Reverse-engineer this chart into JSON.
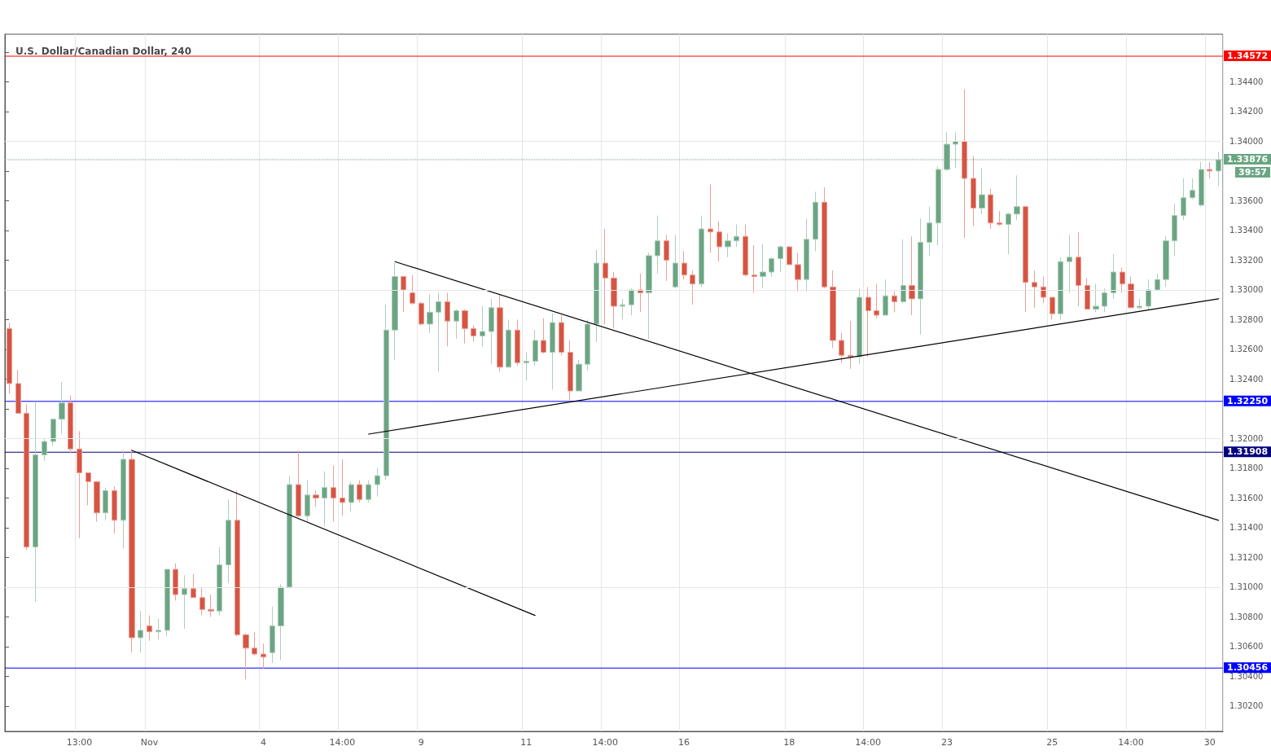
{
  "chart_data": {
    "type": "candlestick",
    "title": "U.S. Dollar/Canadian Dollar, 240",
    "categories": [
      null,
      null,
      null,
      null,
      null,
      null,
      null,
      null,
      "13:00",
      null,
      null,
      null,
      null,
      null,
      null,
      null,
      "Nov",
      null,
      null,
      null,
      null,
      null,
      null,
      null,
      null,
      null,
      null,
      null,
      null,
      "4",
      null,
      null,
      null,
      null,
      null,
      null,
      null,
      null,
      "14:00",
      null,
      null,
      null,
      null,
      null,
      null,
      null,
      null,
      "9",
      null,
      null,
      null,
      null,
      null,
      null,
      null,
      null,
      null,
      null,
      null,
      "11",
      null,
      null,
      null,
      null,
      null,
      null,
      null,
      null,
      "14:00",
      null,
      null,
      null,
      null,
      null,
      null,
      null,
      null,
      "16",
      null,
      null,
      null,
      null,
      null,
      null,
      null,
      null,
      null,
      null,
      null,
      "18",
      null,
      null,
      null,
      null,
      null,
      null,
      null,
      null,
      "14:00",
      null,
      null,
      null,
      null,
      null,
      null,
      null,
      null,
      "23",
      null,
      null,
      null,
      null,
      null,
      null,
      null,
      null,
      null,
      null,
      null,
      "25",
      null,
      null,
      null,
      null,
      null,
      null,
      null,
      null,
      "14:00",
      null,
      null,
      null,
      null,
      null,
      null,
      null,
      null,
      "30",
      null
    ],
    "series": [
      {
        "colors": [
          "#d75442",
          "#d75442",
          "#d75442",
          "#6ba583",
          "#6ba583",
          "#6ba583",
          "#6ba583",
          "#d75442",
          "#d75442",
          "#d75442",
          "#d75442",
          "#6ba583",
          "#d75442",
          "#6ba583",
          "#d75442",
          "#6ba583",
          "#d75442",
          "#6ba583",
          "#6ba583",
          "#d75442",
          "#6ba583",
          "#d75442",
          "#d75442",
          "#d75442",
          "#6ba583",
          "#6ba583",
          "#d75442",
          "#d75442",
          "#d75442",
          "#d75442",
          "#6ba583",
          "#6ba583",
          "#6ba583",
          "#d75442",
          "#6ba583",
          "#d75442",
          "#6ba583",
          "#d75442",
          "#d75442",
          "#6ba583",
          "#d75442",
          "#6ba583",
          "#6ba583",
          "#6ba583",
          "#6ba583",
          "#d75442",
          "#d75442",
          "#d75442",
          "#6ba583",
          "#6ba583",
          "#d75442",
          "#6ba583",
          "#d75442",
          "#d75442",
          "#6ba583",
          "#6ba583",
          "#d75442",
          "#6ba583",
          "#d75442",
          "#6ba583",
          "#6ba583",
          "#d75442",
          "#6ba583",
          "#d75442",
          "#d75442",
          "#6ba583",
          "#6ba583",
          "#6ba583",
          "#d75442",
          "#d75442",
          "#6ba583",
          "#6ba583",
          "#d75442",
          "#6ba583",
          "#6ba583",
          "#d75442",
          "#6ba583",
          "#d75442",
          "#d75442",
          "#6ba583",
          "#d75442",
          "#d75442",
          "#6ba583",
          "#6ba583",
          "#d75442",
          "#d75442",
          "#6ba583",
          "#6ba583",
          "#6ba583",
          "#d75442",
          "#d75442",
          "#6ba583",
          "#6ba583",
          "#d75442",
          "#d75442",
          "#d75442",
          "#d75442",
          "#6ba583",
          "#d75442",
          "#d75442",
          "#6ba583",
          "#d75442",
          "#6ba583",
          "#d75442",
          "#6ba583",
          "#6ba583",
          "#6ba583",
          "#6ba583",
          "#6ba583",
          "#d75442",
          "#d75442",
          "#6ba583",
          "#d75442",
          "#d75442",
          "#6ba583",
          "#6ba583",
          "#d75442",
          "#d75442",
          "#d75442",
          "#d75442",
          "#6ba583",
          "#6ba583",
          "#d75442",
          "#d75442",
          "#6ba583",
          "#6ba583",
          "#6ba583",
          "#d75442",
          "#d75442",
          "#6ba583",
          "#6ba583",
          "#6ba583",
          "#6ba583",
          "#6ba583",
          "#6ba583",
          "#6ba583",
          "#6ba583",
          "#d75442",
          "#6ba583"
        ],
        "ohlc": [
          [
            1.3274,
            1.3278,
            1.323,
            1.3237
          ],
          [
            1.3237,
            1.3246,
            1.3217,
            1.3217
          ],
          [
            1.3217,
            1.3223,
            1.3125,
            1.3127
          ],
          [
            1.3127,
            1.3225,
            1.309,
            1.3189
          ],
          [
            1.3189,
            1.32,
            1.3185,
            1.3198
          ],
          [
            1.3198,
            1.3213,
            1.3195,
            1.3213
          ],
          [
            1.3213,
            1.3238,
            1.3203,
            1.3224
          ],
          [
            1.3224,
            1.3229,
            1.319,
            1.3193
          ],
          [
            1.3193,
            1.3205,
            1.3133,
            1.3177
          ],
          [
            1.3177,
            1.3177,
            1.3155,
            1.3171
          ],
          [
            1.3171,
            1.3171,
            1.3144,
            1.315
          ],
          [
            1.315,
            1.3167,
            1.3145,
            1.3165
          ],
          [
            1.3165,
            1.3168,
            1.3136,
            1.3145
          ],
          [
            1.3145,
            1.3192,
            1.3126,
            1.3186
          ],
          [
            1.3186,
            1.3193,
            1.3056,
            1.3066
          ],
          [
            1.3066,
            1.3084,
            1.3056,
            1.3071
          ],
          [
            1.3074,
            1.3081,
            1.3064,
            1.307
          ],
          [
            1.307,
            1.3079,
            1.3065,
            1.3071
          ],
          [
            1.3071,
            1.3112,
            1.3067,
            1.3112
          ],
          [
            1.3112,
            1.3116,
            1.3091,
            1.3095
          ],
          [
            1.3095,
            1.3108,
            1.3072,
            1.3099
          ],
          [
            1.3099,
            1.3109,
            1.3093,
            1.3093
          ],
          [
            1.3093,
            1.31,
            1.3081,
            1.3085
          ],
          [
            1.3085,
            1.3095,
            1.308,
            1.3084
          ],
          [
            1.3084,
            1.3127,
            1.3081,
            1.3115
          ],
          [
            1.3115,
            1.3159,
            1.3103,
            1.3145
          ],
          [
            1.3145,
            1.3165,
            1.3067,
            1.3068
          ],
          [
            1.3068,
            1.3069,
            1.3038,
            1.3059
          ],
          [
            1.3059,
            1.307,
            1.3054,
            1.3055
          ],
          [
            1.3055,
            1.3062,
            1.3045,
            1.3053
          ],
          [
            1.3056,
            1.3087,
            1.3049,
            1.3074
          ],
          [
            1.3074,
            1.3102,
            1.3051,
            1.31
          ],
          [
            1.31,
            1.3175,
            1.3099,
            1.3169
          ],
          [
            1.3169,
            1.3192,
            1.3147,
            1.3148
          ],
          [
            1.3148,
            1.3172,
            1.3144,
            1.3162
          ],
          [
            1.3162,
            1.3165,
            1.3154,
            1.316
          ],
          [
            1.316,
            1.3178,
            1.3141,
            1.3167
          ],
          [
            1.3167,
            1.3182,
            1.3144,
            1.316
          ],
          [
            1.316,
            1.3186,
            1.3148,
            1.3157
          ],
          [
            1.3157,
            1.3171,
            1.3151,
            1.3169
          ],
          [
            1.3169,
            1.3172,
            1.3157,
            1.3159
          ],
          [
            1.3159,
            1.3172,
            1.3157,
            1.3169
          ],
          [
            1.3169,
            1.318,
            1.3161,
            1.3175
          ],
          [
            1.3175,
            1.329,
            1.3172,
            1.3273
          ],
          [
            1.3273,
            1.3318,
            1.3253,
            1.3309
          ],
          [
            1.3309,
            1.3309,
            1.3285,
            1.33
          ],
          [
            1.3298,
            1.331,
            1.329,
            1.3291
          ],
          [
            1.3291,
            1.3292,
            1.3276,
            1.3277
          ],
          [
            1.3277,
            1.3297,
            1.3271,
            1.3285
          ],
          [
            1.3285,
            1.3298,
            1.3245,
            1.3292
          ],
          [
            1.3292,
            1.3298,
            1.3262,
            1.3279
          ],
          [
            1.3279,
            1.3287,
            1.3267,
            1.3286
          ],
          [
            1.3286,
            1.3287,
            1.3264,
            1.3274
          ],
          [
            1.3274,
            1.3276,
            1.3265,
            1.3269
          ],
          [
            1.3269,
            1.3289,
            1.3262,
            1.3272
          ],
          [
            1.3272,
            1.3294,
            1.325,
            1.3288
          ],
          [
            1.3288,
            1.3297,
            1.3245,
            1.3248
          ],
          [
            1.3248,
            1.328,
            1.3248,
            1.3273
          ],
          [
            1.3273,
            1.328,
            1.3249,
            1.3251
          ],
          [
            1.3251,
            1.3258,
            1.3239,
            1.3252
          ],
          [
            1.3252,
            1.3273,
            1.3249,
            1.3266
          ],
          [
            1.3266,
            1.3281,
            1.3257,
            1.3258
          ],
          [
            1.3258,
            1.3284,
            1.3233,
            1.3278
          ],
          [
            1.3278,
            1.3283,
            1.3256,
            1.3258
          ],
          [
            1.3258,
            1.3266,
            1.3225,
            1.3232
          ],
          [
            1.3232,
            1.3253,
            1.3232,
            1.325
          ],
          [
            1.325,
            1.328,
            1.3246,
            1.3277
          ],
          [
            1.3277,
            1.3327,
            1.3265,
            1.3318
          ],
          [
            1.3318,
            1.3341,
            1.3277,
            1.3308
          ],
          [
            1.3308,
            1.3312,
            1.3274,
            1.3289
          ],
          [
            1.3289,
            1.3294,
            1.328,
            1.329
          ],
          [
            1.329,
            1.3301,
            1.3283,
            1.33
          ],
          [
            1.33,
            1.3311,
            1.3285,
            1.3298
          ],
          [
            1.3298,
            1.3325,
            1.3267,
            1.3323
          ],
          [
            1.3323,
            1.335,
            1.3311,
            1.3333
          ],
          [
            1.3333,
            1.3337,
            1.3306,
            1.332
          ],
          [
            1.3302,
            1.3337,
            1.3301,
            1.3318
          ],
          [
            1.3318,
            1.3326,
            1.3307,
            1.331
          ],
          [
            1.331,
            1.3313,
            1.329,
            1.3304
          ],
          [
            1.3304,
            1.335,
            1.3302,
            1.3341
          ],
          [
            1.3341,
            1.3371,
            1.3325,
            1.3339
          ],
          [
            1.3339,
            1.3346,
            1.3319,
            1.3329
          ],
          [
            1.3329,
            1.3338,
            1.3322,
            1.3333
          ],
          [
            1.3333,
            1.3344,
            1.3329,
            1.3336
          ],
          [
            1.3336,
            1.3344,
            1.3309,
            1.331
          ],
          [
            1.331,
            1.333,
            1.3298,
            1.3309
          ],
          [
            1.3309,
            1.3331,
            1.3301,
            1.3312
          ],
          [
            1.3312,
            1.3322,
            1.3309,
            1.3321
          ],
          [
            1.3321,
            1.333,
            1.3312,
            1.3329
          ],
          [
            1.3329,
            1.3329,
            1.3317,
            1.3317
          ],
          [
            1.3317,
            1.3325,
            1.3299,
            1.3307
          ],
          [
            1.3307,
            1.3348,
            1.3299,
            1.3334
          ],
          [
            1.3334,
            1.3366,
            1.3326,
            1.3359
          ],
          [
            1.3359,
            1.3369,
            1.3301,
            1.3302
          ],
          [
            1.3302,
            1.3313,
            1.3261,
            1.3266
          ],
          [
            1.3266,
            1.3271,
            1.3251,
            1.3256
          ],
          [
            1.3256,
            1.3279,
            1.3247,
            1.3255
          ],
          [
            1.3255,
            1.3301,
            1.325,
            1.3295
          ],
          [
            1.3295,
            1.3302,
            1.3255,
            1.3286
          ],
          [
            1.3286,
            1.3304,
            1.3281,
            1.3283
          ],
          [
            1.3283,
            1.3307,
            1.3283,
            1.3296
          ],
          [
            1.3296,
            1.3299,
            1.3285,
            1.3292
          ],
          [
            1.3292,
            1.3334,
            1.3291,
            1.3303
          ],
          [
            1.3303,
            1.3336,
            1.3283,
            1.3294
          ],
          [
            1.3294,
            1.3348,
            1.327,
            1.3332
          ],
          [
            1.3332,
            1.3356,
            1.3323,
            1.3345
          ],
          [
            1.3345,
            1.3383,
            1.333,
            1.3381
          ],
          [
            1.3381,
            1.3406,
            1.338,
            1.3398
          ],
          [
            1.3398,
            1.3406,
            1.3382,
            1.34
          ],
          [
            1.34,
            1.3435,
            1.3335,
            1.3375
          ],
          [
            1.3375,
            1.339,
            1.3343,
            1.3355
          ],
          [
            1.3355,
            1.3382,
            1.3351,
            1.3364
          ],
          [
            1.3364,
            1.3368,
            1.3341,
            1.3345
          ],
          [
            1.3345,
            1.3353,
            1.3343,
            1.3344
          ],
          [
            1.3344,
            1.3352,
            1.3324,
            1.3351
          ],
          [
            1.3351,
            1.3377,
            1.3347,
            1.3356
          ],
          [
            1.3356,
            1.3356,
            1.3285,
            1.3305
          ],
          [
            1.3305,
            1.3313,
            1.3288,
            1.3302
          ],
          [
            1.3302,
            1.3309,
            1.3291,
            1.3295
          ],
          [
            1.3295,
            1.3295,
            1.328,
            1.3284
          ],
          [
            1.3284,
            1.3322,
            1.328,
            1.3319
          ],
          [
            1.3319,
            1.3337,
            1.3298,
            1.3322
          ],
          [
            1.3322,
            1.3339,
            1.3289,
            1.3303
          ],
          [
            1.3303,
            1.3308,
            1.3287,
            1.3287
          ],
          [
            1.3287,
            1.3304,
            1.3285,
            1.3289
          ],
          [
            1.3289,
            1.3301,
            1.3285,
            1.3298
          ],
          [
            1.3298,
            1.3324,
            1.3294,
            1.3312
          ],
          [
            1.3312,
            1.3315,
            1.3298,
            1.3304
          ],
          [
            1.3304,
            1.3309,
            1.3288,
            1.3288
          ],
          [
            1.3288,
            1.3294,
            1.3287,
            1.3289
          ],
          [
            1.3289,
            1.3307,
            1.3287,
            1.33
          ],
          [
            1.33,
            1.3311,
            1.3299,
            1.3307
          ],
          [
            1.3307,
            1.3336,
            1.3302,
            1.3333
          ],
          [
            1.3333,
            1.3358,
            1.3323,
            1.335
          ],
          [
            1.335,
            1.3375,
            1.3347,
            1.3362
          ],
          [
            1.3362,
            1.3375,
            1.3361,
            1.3367
          ],
          [
            1.3357,
            1.3386,
            1.3356,
            1.3381
          ],
          [
            1.3381,
            1.3386,
            1.3375,
            1.338
          ],
          [
            1.338,
            1.3393,
            1.337,
            1.33876
          ]
        ]
      },
      {
        "type": "line",
        "color": "#000000",
        "values": [
          null,
          null,
          null,
          null,
          null,
          null,
          null,
          null,
          null,
          null,
          null,
          null,
          null,
          null,
          1.3192,
          null,
          null,
          null,
          null,
          null,
          null,
          null,
          null,
          null,
          null,
          null,
          null,
          null,
          null,
          null,
          null,
          null,
          null,
          null,
          null,
          null,
          null,
          null,
          null,
          null,
          null,
          null,
          null,
          null,
          null,
          null,
          null,
          null,
          null,
          null,
          null,
          null,
          null,
          null,
          null,
          null,
          null,
          null,
          null,
          null,
          1.3081,
          null,
          null,
          null,
          null,
          null,
          null,
          null,
          null,
          null,
          null,
          null,
          null,
          null,
          null,
          null,
          null,
          null,
          null,
          null,
          null,
          null,
          null,
          null,
          null,
          null,
          null,
          null,
          null,
          null,
          null,
          null,
          null,
          null,
          null,
          null,
          null,
          null,
          null,
          null,
          null,
          null,
          null,
          null,
          null,
          null,
          null,
          null,
          null,
          null,
          null,
          null,
          null,
          null,
          null,
          null,
          null,
          null,
          null,
          null,
          null,
          null,
          null,
          null,
          null,
          null,
          null,
          null,
          null,
          null,
          null,
          null,
          null,
          null,
          null,
          null,
          null,
          null,
          null
        ]
      },
      {
        "type": "line",
        "color": "#000000",
        "values": [
          null,
          null,
          null,
          null,
          null,
          null,
          null,
          null,
          null,
          null,
          null,
          null,
          null,
          null,
          null,
          null,
          null,
          null,
          null,
          null,
          null,
          null,
          null,
          null,
          null,
          null,
          null,
          null,
          null,
          null,
          null,
          null,
          null,
          null,
          null,
          null,
          null,
          null,
          null,
          null,
          null,
          null,
          null,
          null,
          1.3319,
          null,
          null,
          null,
          null,
          null,
          null,
          null,
          null,
          null,
          null,
          null,
          null,
          null,
          null,
          null,
          null,
          null,
          null,
          null,
          null,
          null,
          null,
          null,
          null,
          null,
          null,
          null,
          null,
          null,
          null,
          null,
          null,
          null,
          null,
          null,
          null,
          null,
          null,
          null,
          null,
          null,
          null,
          null,
          null,
          null,
          null,
          null,
          null,
          null,
          null,
          null,
          null,
          null,
          null,
          null,
          null,
          null,
          null,
          null,
          null,
          null,
          null,
          null,
          null,
          null,
          null,
          null,
          null,
          null,
          null,
          null,
          null,
          null,
          null,
          null,
          null,
          null,
          null,
          null,
          null,
          null,
          null,
          null,
          null,
          null,
          null,
          null,
          null,
          null,
          null,
          null,
          null,
          null,
          1.3145
        ]
      },
      {
        "type": "line",
        "color": "#000000",
        "values": [
          null,
          null,
          null,
          null,
          null,
          null,
          null,
          null,
          null,
          null,
          null,
          null,
          null,
          null,
          null,
          null,
          null,
          null,
          null,
          null,
          null,
          null,
          null,
          null,
          null,
          null,
          null,
          null,
          null,
          null,
          null,
          null,
          null,
          null,
          null,
          null,
          null,
          null,
          null,
          null,
          null,
          1.3203,
          null,
          null,
          null,
          null,
          null,
          null,
          null,
          null,
          null,
          null,
          null,
          null,
          null,
          null,
          null,
          null,
          null,
          null,
          null,
          null,
          null,
          null,
          null,
          null,
          null,
          null,
          null,
          null,
          null,
          null,
          null,
          null,
          null,
          null,
          null,
          null,
          null,
          null,
          null,
          null,
          null,
          null,
          null,
          null,
          null,
          null,
          null,
          null,
          null,
          null,
          null,
          null,
          null,
          null,
          null,
          null,
          null,
          null,
          null,
          null,
          null,
          null,
          null,
          null,
          null,
          null,
          null,
          null,
          null,
          null,
          null,
          null,
          null,
          null,
          null,
          null,
          null,
          null,
          null,
          null,
          null,
          null,
          null,
          null,
          null,
          null,
          null,
          null,
          null,
          null,
          null,
          null,
          null,
          null,
          null,
          null,
          1.3294
        ]
      }
    ],
    "ylim": [
      1.3003,
      1.3472
    ],
    "yticks": [
      {
        "value": 1.302,
        "label": "1.30200"
      },
      {
        "value": 1.304,
        "label": "1.30400"
      },
      {
        "value": 1.306,
        "label": "1.30600"
      },
      {
        "value": 1.308,
        "label": "1.30800"
      },
      {
        "value": 1.31,
        "label": "1.31000"
      },
      {
        "value": 1.312,
        "label": "1.31200"
      },
      {
        "value": 1.314,
        "label": "1.31400"
      },
      {
        "value": 1.316,
        "label": "1.31600"
      },
      {
        "value": 1.318,
        "label": "1.31800"
      },
      {
        "value": 1.32,
        "label": "1.32000"
      },
      {
        "value": 1.322,
        "label": null
      },
      {
        "value": 1.324,
        "label": "1.32400"
      },
      {
        "value": 1.326,
        "label": "1.32600"
      },
      {
        "value": 1.328,
        "label": "1.32800"
      },
      {
        "value": 1.33,
        "label": "1.33000"
      },
      {
        "value": 1.332,
        "label": "1.33200"
      },
      {
        "value": 1.334,
        "label": "1.33400"
      },
      {
        "value": 1.336,
        "label": "1.33600"
      },
      {
        "value": 1.338,
        "label": null
      },
      {
        "value": 1.34,
        "label": "1.34000"
      },
      {
        "value": 1.342,
        "label": "1.34200"
      },
      {
        "value": 1.344,
        "label": "1.34400"
      },
      {
        "value": 1.346,
        "label": null
      }
    ],
    "ref_lines": [
      {
        "axis": "y",
        "value": 1.34572,
        "label": "1.34572",
        "color": "#ff0000"
      },
      {
        "axis": "y",
        "value": 1.3225,
        "label": "1.32250",
        "color": "#0000ff"
      },
      {
        "axis": "y",
        "value": 1.31908,
        "label": "1.31908",
        "color": "#000080"
      },
      {
        "axis": "y",
        "value": 1.30456,
        "label": "1.30456",
        "color": "#0000ff"
      },
      {
        "axis": "y",
        "value": 1.33876,
        "label": "1.33876",
        "color": "#6ba583",
        "line_style": "dotted"
      }
    ],
    "annotations": [
      "39:57"
    ],
    "grid": true
  }
}
